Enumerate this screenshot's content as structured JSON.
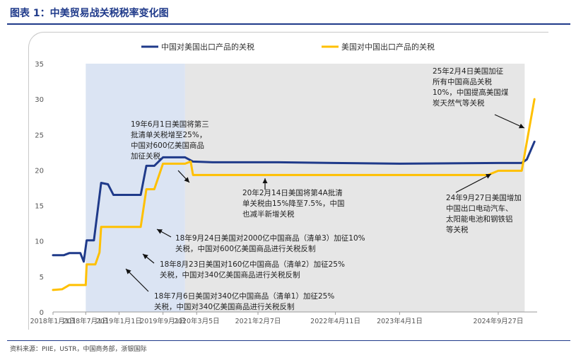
{
  "figure": {
    "title": "图表 1：中美贸易战关税税率变化图",
    "source": "资料来源：PIIE，USTR，中国商务部，浙银国际"
  },
  "chart_data": {
    "type": "line",
    "ylim": [
      0,
      35
    ],
    "yticks": [
      "0",
      "5",
      "10",
      "15",
      "20",
      "25",
      "30",
      "35"
    ],
    "xlim": [
      "2018-01-01",
      "2025-04-30"
    ],
    "xticks": [
      {
        "date": "2018-01-01",
        "label": "2018年1月1日"
      },
      {
        "date": "2018-07-01",
        "label": "2018年7月1日"
      },
      {
        "date": "2019-01-01",
        "label": "2019年1月1日"
      },
      {
        "date": "2019-09-01",
        "label": "2019年9月1日"
      },
      {
        "date": "2020-03-05",
        "label": "2020年3月5日"
      },
      {
        "date": "2021-02-07",
        "label": "2021年2月7日"
      },
      {
        "date": "2022-04-11",
        "label": "2022年4月11日"
      },
      {
        "date": "2023-04-01",
        "label": "2023年4月1日"
      },
      {
        "date": "2024-09-27",
        "label": "2024年9月27日"
      }
    ],
    "shaded_regions": [
      {
        "from": "2018-07-01",
        "to": "2020-01-01",
        "color": "#dbe4f3"
      },
      {
        "from": "2020-01-01",
        "to": "2025-02-20",
        "color": "#e6e6e6"
      }
    ],
    "legend_position": "top",
    "series": [
      {
        "name": "中国对美国出口产品的关税",
        "color": "#1f3a8a",
        "points": [
          [
            "2018-01-01",
            8.0
          ],
          [
            "2018-03-01",
            8.0
          ],
          [
            "2018-04-01",
            8.3
          ],
          [
            "2018-05-01",
            8.3
          ],
          [
            "2018-06-01",
            8.3
          ],
          [
            "2018-06-20",
            7.1
          ],
          [
            "2018-07-06",
            10.1
          ],
          [
            "2018-08-15",
            10.1
          ],
          [
            "2018-09-24",
            18.2
          ],
          [
            "2018-11-01",
            18.0
          ],
          [
            "2018-12-01",
            16.5
          ],
          [
            "2019-05-01",
            16.5
          ],
          [
            "2019-06-01",
            20.6
          ],
          [
            "2019-07-15",
            20.6
          ],
          [
            "2019-09-01",
            21.8
          ],
          [
            "2020-01-01",
            21.8
          ],
          [
            "2020-02-14",
            21.2
          ],
          [
            "2020-06-01",
            21.1
          ],
          [
            "2021-06-01",
            21.1
          ],
          [
            "2022-04-01",
            21.0
          ],
          [
            "2023-04-01",
            20.9
          ],
          [
            "2024-09-27",
            21.0
          ],
          [
            "2025-02-04",
            21.0
          ],
          [
            "2025-03-04",
            21.5
          ],
          [
            "2025-04-15",
            24.0
          ]
        ]
      },
      {
        "name": "美国对中国出口产品的关税",
        "color": "#ffc000",
        "points": [
          [
            "2018-01-01",
            3.1
          ],
          [
            "2018-02-20",
            3.2
          ],
          [
            "2018-04-01",
            3.8
          ],
          [
            "2018-07-01",
            3.8
          ],
          [
            "2018-07-06",
            6.7
          ],
          [
            "2018-08-23",
            6.7
          ],
          [
            "2018-09-15",
            8.4
          ],
          [
            "2018-09-24",
            12.0
          ],
          [
            "2019-05-01",
            12.0
          ],
          [
            "2019-06-01",
            17.3
          ],
          [
            "2019-07-15",
            17.3
          ],
          [
            "2019-09-01",
            20.9
          ],
          [
            "2020-01-01",
            20.9
          ],
          [
            "2020-02-01",
            21.2
          ],
          [
            "2020-02-14",
            19.3
          ],
          [
            "2024-08-01",
            19.3
          ],
          [
            "2024-09-27",
            19.9
          ],
          [
            "2025-02-04",
            19.9
          ],
          [
            "2025-04-15",
            30.0
          ]
        ]
      }
    ],
    "annotations": [
      {
        "id": "a1",
        "text": "25年2月4日美国加征\n所有中国商品关税\n10%，中国提高美国煤\n炭天然气等关税"
      },
      {
        "id": "a2",
        "text": "19年6月1日美国将第三\n批清单关税增至25%，\n中国对600亿美国商品\n加征关税"
      },
      {
        "id": "a3",
        "text": "20年2月14日美国将第4A批清\n单关税由15%降至7.5%，中国\n也减半新增关税"
      },
      {
        "id": "a4",
        "text": "24年9月27日美国增加\n中国出口电动汽车、\n太阳能电池和钢铁铝\n等关税"
      },
      {
        "id": "a5",
        "text": "18年9月24日美国对2000亿中国商品（清单3）加征10%\n关税，中国对600亿美国商品进行关税反制"
      },
      {
        "id": "a6",
        "text": "18年8月23日美国对160亿中国商品（清单2）加征25%\n关税，中国对340亿美国商品进行关税反制"
      },
      {
        "id": "a7",
        "text": "18年7月6日美国对340亿中国商品（清单1）加征25%\n关税，中国对340亿美国商品进行关税反制"
      }
    ]
  }
}
